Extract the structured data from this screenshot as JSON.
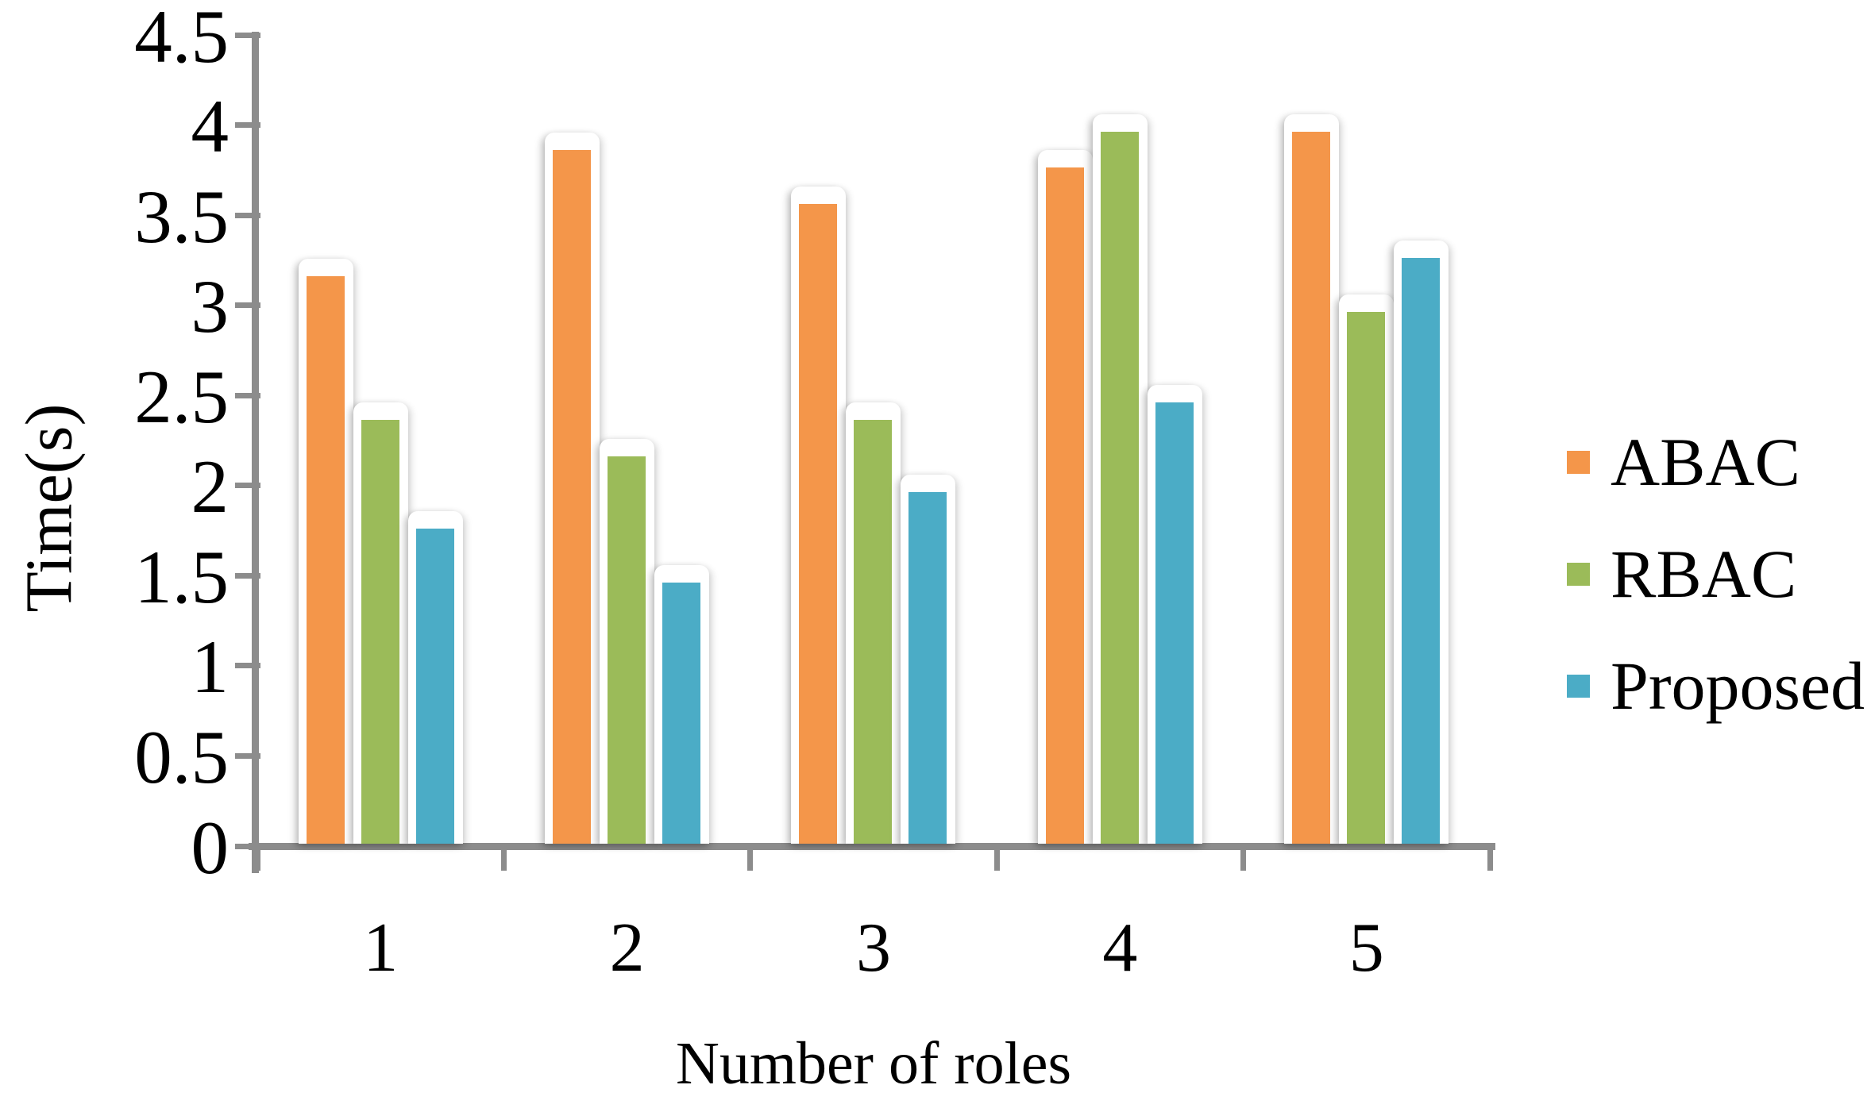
{
  "figure": {
    "y_axis_title": "Time(s)",
    "x_axis_title": "Number of roles"
  },
  "chart_data": {
    "type": "bar",
    "title": "",
    "categories": [
      "1",
      "2",
      "3",
      "4",
      "5"
    ],
    "series": [
      {
        "name": "ABAC",
        "color": "#F4964A",
        "values": [
          3.15,
          3.85,
          3.55,
          3.75,
          3.95
        ]
      },
      {
        "name": "RBAC",
        "color": "#9BBB59",
        "values": [
          2.35,
          2.15,
          2.35,
          3.95,
          2.95
        ]
      },
      {
        "name": "Proposed",
        "color": "#4BACC6",
        "values": [
          1.75,
          1.45,
          1.95,
          2.45,
          3.25
        ]
      }
    ],
    "xlabel": "Number of roles",
    "ylabel": "Time(s)",
    "ylim": [
      0,
      4.5
    ],
    "y_tick_step": 0.5,
    "y_tick_labels": [
      "4.5",
      "4",
      "3.5",
      "3",
      "2.5",
      "2",
      "1.5",
      "1",
      "0.5",
      "0"
    ],
    "grid": false,
    "legend_position": "right",
    "axis_color": "#8C8C8C",
    "text_color": "#000000"
  }
}
